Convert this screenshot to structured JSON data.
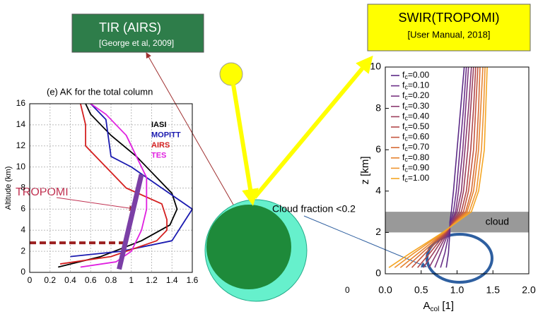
{
  "chart_data": [
    {
      "type": "line",
      "title": "(e) AK for the total column",
      "ylabel": "Altitude (km)",
      "xlim": [
        0,
        1.6
      ],
      "ylim": [
        0,
        16
      ],
      "xticks": [
        0,
        0.2,
        0.4,
        0.6,
        0.8,
        1,
        1.2,
        1.4,
        1.6
      ],
      "yticks": [
        0,
        2,
        4,
        6,
        8,
        10,
        12,
        14,
        16
      ],
      "grid": true,
      "legend": "upper right",
      "series": [
        {
          "name": "IASI",
          "color": "#000000",
          "legend": true,
          "values": [
            0.28,
            0.7,
            1.1,
            1.38,
            1.45,
            1.4,
            1.25,
            1.05,
            0.8,
            0.6,
            0.55
          ],
          "y": [
            0.5,
            1.5,
            3,
            4.5,
            6,
            7.5,
            9,
            11,
            13,
            15,
            16
          ]
        },
        {
          "name": "MOPITT",
          "color": "#1a1ab0",
          "legend": true,
          "values": [
            0.4,
            0.9,
            1.4,
            1.6,
            1.3,
            1.0,
            0.8,
            0.75,
            0.6
          ],
          "y": [
            1.5,
            2,
            3,
            6,
            8,
            10,
            11,
            14.5,
            16
          ]
        },
        {
          "name": "AIRS",
          "color": "#d42020",
          "legend": true,
          "values": [
            0.3,
            0.8,
            1.25,
            1.35,
            1.35,
            1.3,
            0.95,
            0.75,
            0.55,
            0.55,
            0.5
          ],
          "y": [
            0.8,
            1.5,
            3,
            4,
            5,
            6.5,
            8,
            10,
            12,
            14,
            16
          ]
        },
        {
          "name": "TES",
          "color": "#e020e0",
          "legend": true,
          "values": [
            0.5,
            0.85,
            1.0,
            1.1,
            1.15,
            1.15,
            1.05,
            0.95,
            0.75,
            0.6
          ],
          "y": [
            0.5,
            1,
            2,
            4,
            6,
            9,
            11,
            13,
            15,
            16
          ]
        },
        {
          "name": "TROPOMI",
          "color": "#7b3fa6",
          "legend": false,
          "values": [
            0.88,
            1.1
          ],
          "y": [
            0.3,
            9.3
          ]
        }
      ],
      "hline": {
        "y": 2.8,
        "xmax": 0.95,
        "color": "#9b2020"
      }
    },
    {
      "type": "line",
      "ylabel": "z [km]",
      "xlabel": "A",
      "xlabel_sub": "col",
      "xlabel_unit": "[1]",
      "xlim": [
        0,
        2
      ],
      "ylim": [
        0,
        10
      ],
      "xticks": [
        {
          "value": 0,
          "label": "0.0"
        },
        0.5,
        {
          "value": 1,
          "label": "1.0"
        },
        1.5,
        {
          "value": 2,
          "label": "2.0"
        }
      ],
      "yticks": [
        0,
        2,
        4,
        6,
        8,
        10
      ],
      "grid": false,
      "legend": "upper left",
      "legend_symbol": "f",
      "legend_subscript": "c",
      "legend_separator": "=",
      "band": {
        "ymin": 2,
        "ymax": 3,
        "label": "cloud",
        "color": "#999999"
      },
      "series": [
        {
          "name": "0.00",
          "color": "#5b2a86",
          "legend": true,
          "values": [
            0.85,
            0.88,
            0.9,
            0.9,
            0.92,
            0.95,
            1.0,
            1.05,
            1.1
          ],
          "y": [
            0.3,
            1,
            2,
            2.5,
            3,
            4,
            6,
            8,
            10
          ]
        },
        {
          "name": "0.10",
          "color": "#6b3089",
          "legend": true,
          "values": [
            0.77,
            0.83,
            0.89,
            0.91,
            0.95,
            0.99,
            1.04,
            1.09,
            1.13
          ],
          "y": [
            0.3,
            1,
            2,
            2.5,
            3,
            4,
            6,
            8,
            10
          ]
        },
        {
          "name": "0.20",
          "color": "#7a3580",
          "legend": true,
          "values": [
            0.69,
            0.77,
            0.88,
            0.92,
            0.98,
            1.02,
            1.08,
            1.12,
            1.16
          ],
          "y": [
            0.3,
            1,
            2,
            2.5,
            3,
            4,
            6,
            8,
            10
          ]
        },
        {
          "name": "0.30",
          "color": "#8a3a70",
          "legend": true,
          "values": [
            0.61,
            0.72,
            0.87,
            0.93,
            1.0,
            1.06,
            1.11,
            1.16,
            1.2
          ],
          "y": [
            0.3,
            1,
            2,
            2.5,
            3,
            4,
            6,
            8,
            10
          ]
        },
        {
          "name": "0.40",
          "color": "#9c3f5c",
          "legend": true,
          "values": [
            0.53,
            0.67,
            0.86,
            0.94,
            1.03,
            1.09,
            1.15,
            1.19,
            1.23
          ],
          "y": [
            0.3,
            1,
            2,
            2.5,
            3,
            4,
            6,
            8,
            10
          ]
        },
        {
          "name": "0.50",
          "color": "#b0464a",
          "legend": true,
          "values": [
            0.45,
            0.62,
            0.85,
            0.95,
            1.06,
            1.13,
            1.19,
            1.23,
            1.26
          ],
          "y": [
            0.3,
            1,
            2,
            2.5,
            3,
            4,
            6,
            8,
            10
          ]
        },
        {
          "name": "0.60",
          "color": "#c4553e",
          "legend": true,
          "values": [
            0.37,
            0.56,
            0.84,
            0.96,
            1.09,
            1.16,
            1.23,
            1.26,
            1.29
          ],
          "y": [
            0.3,
            1,
            2,
            2.5,
            3,
            4,
            6,
            8,
            10
          ]
        },
        {
          "name": "0.70",
          "color": "#d66a35",
          "legend": true,
          "values": [
            0.29,
            0.51,
            0.83,
            0.97,
            1.12,
            1.2,
            1.27,
            1.3,
            1.32
          ],
          "y": [
            0.3,
            1,
            2,
            2.5,
            3,
            4,
            6,
            8,
            10
          ]
        },
        {
          "name": "0.80",
          "color": "#e5822f",
          "legend": true,
          "values": [
            0.21,
            0.46,
            0.82,
            0.98,
            1.14,
            1.23,
            1.3,
            1.33,
            1.36
          ],
          "y": [
            0.3,
            1,
            2,
            2.5,
            3,
            4,
            6,
            8,
            10
          ]
        },
        {
          "name": "0.90",
          "color": "#ef9430",
          "legend": true,
          "values": [
            0.13,
            0.4,
            0.81,
            0.99,
            1.17,
            1.27,
            1.34,
            1.37,
            1.39
          ],
          "y": [
            0.3,
            1,
            2,
            2.5,
            3,
            4,
            6,
            8,
            10
          ]
        },
        {
          "name": "1.00",
          "color": "#f5a623",
          "legend": true,
          "values": [
            0.05,
            0.35,
            0.8,
            1.0,
            1.2,
            1.3,
            1.38,
            1.4,
            1.42
          ],
          "y": [
            0.3,
            1,
            2,
            2.5,
            3,
            4,
            6,
            8,
            10
          ]
        }
      ]
    }
  ],
  "annotations": {
    "tir_title": "TIR (AIRS)",
    "tir_ref": "[George et al, 2009]",
    "swir_title": "SWIR(TROPOMI)",
    "swir_ref": "[User Manual,  2018]",
    "cloud_fraction": "Cloud fraction <0.2",
    "tropomi": "TROPOMI",
    "stray": "0"
  }
}
